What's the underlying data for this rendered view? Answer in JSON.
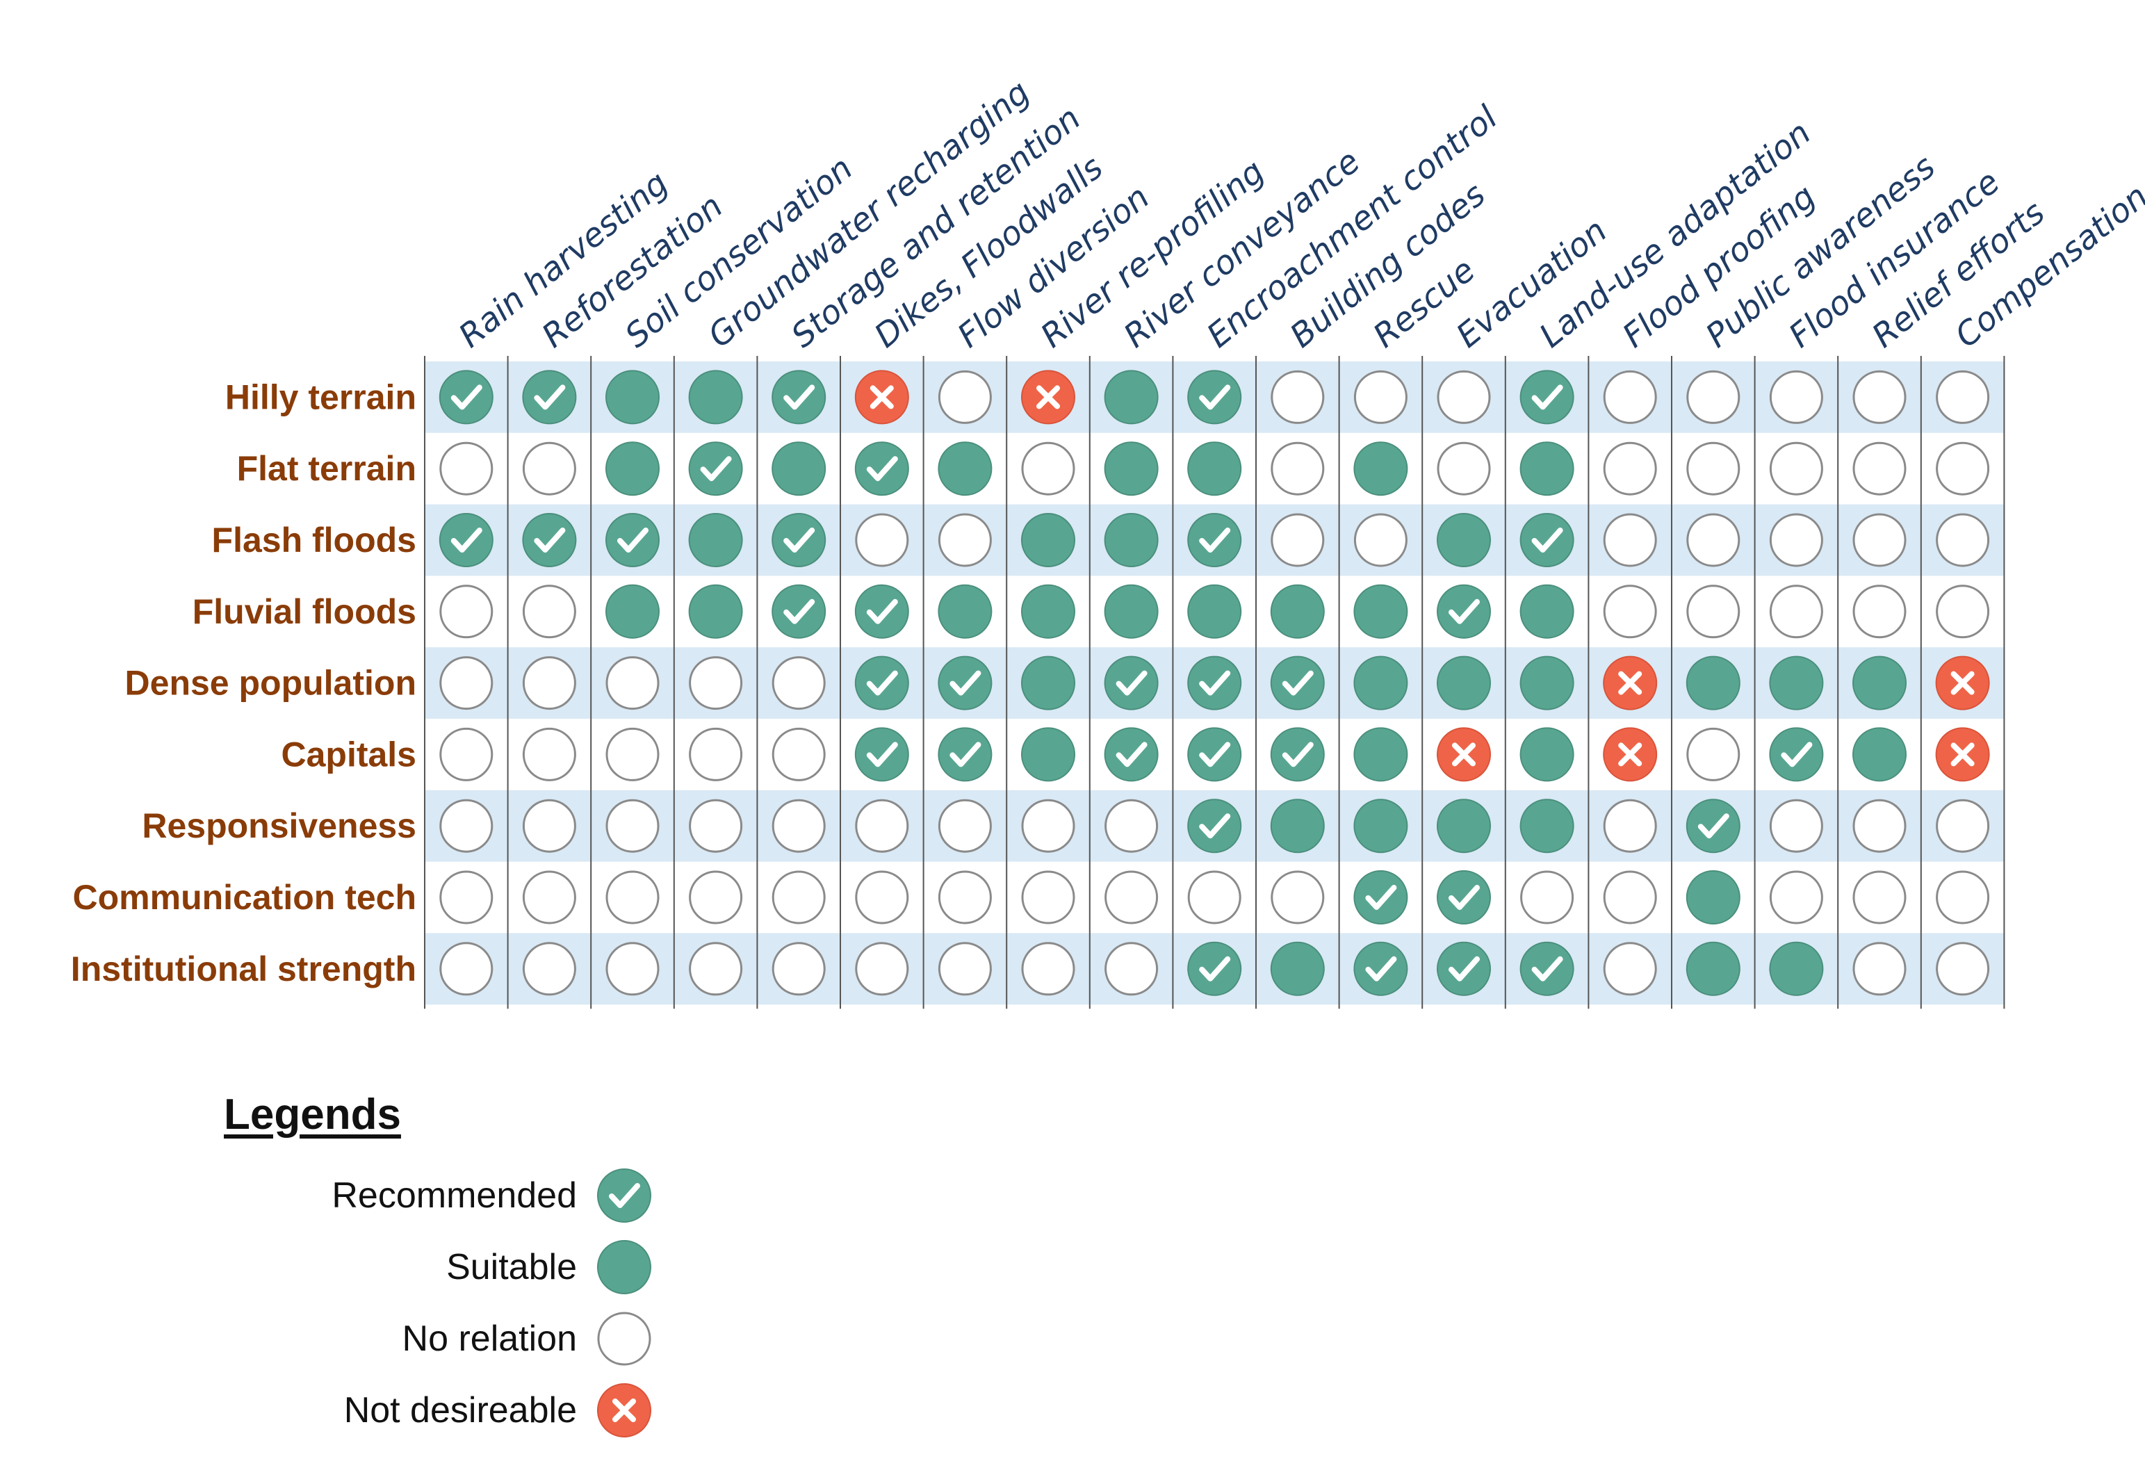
{
  "columns": [
    "Rain harvesting",
    "Reforestation",
    "Soil conservation",
    "Groundwater recharging",
    "Storage and retention",
    "Dikes, Floodwalls",
    "Flow diversion",
    "River re-profiling",
    "River conveyance",
    "Encroachment control",
    "Building codes",
    "Rescue",
    "Evacuation",
    "Land-use adaptation",
    "Flood proofing",
    "Public awareness",
    "Flood insurance",
    "Relief efforts",
    "Compensation"
  ],
  "rows": [
    {
      "label": "Hilly terrain",
      "cells": [
        "R",
        "R",
        "S",
        "S",
        "R",
        "X",
        "N",
        "X",
        "S",
        "R",
        "N",
        "N",
        "N",
        "R",
        "N",
        "N",
        "N",
        "N",
        "N"
      ]
    },
    {
      "label": "Flat terrain",
      "cells": [
        "N",
        "N",
        "S",
        "R",
        "S",
        "R",
        "S",
        "N",
        "S",
        "S",
        "N",
        "S",
        "N",
        "S",
        "N",
        "N",
        "N",
        "N",
        "N"
      ]
    },
    {
      "label": "Flash floods",
      "cells": [
        "R",
        "R",
        "R",
        "S",
        "R",
        "N",
        "N",
        "S",
        "S",
        "R",
        "N",
        "N",
        "S",
        "R",
        "N",
        "N",
        "N",
        "N",
        "N"
      ]
    },
    {
      "label": "Fluvial floods",
      "cells": [
        "N",
        "N",
        "S",
        "S",
        "R",
        "R",
        "S",
        "S",
        "S",
        "S",
        "S",
        "S",
        "R",
        "S",
        "N",
        "N",
        "N",
        "N",
        "N"
      ]
    },
    {
      "label": "Dense population",
      "cells": [
        "N",
        "N",
        "N",
        "N",
        "N",
        "R",
        "R",
        "S",
        "R",
        "R",
        "R",
        "S",
        "S",
        "S",
        "X",
        "S",
        "S",
        "S",
        "X"
      ]
    },
    {
      "label": "Capitals",
      "cells": [
        "N",
        "N",
        "N",
        "N",
        "N",
        "R",
        "R",
        "S",
        "R",
        "R",
        "R",
        "S",
        "X",
        "S",
        "X",
        "N",
        "R",
        "S",
        "X"
      ]
    },
    {
      "label": "Responsiveness",
      "cells": [
        "N",
        "N",
        "N",
        "N",
        "N",
        "N",
        "N",
        "N",
        "N",
        "R",
        "S",
        "S",
        "S",
        "S",
        "N",
        "R",
        "N",
        "N",
        "N"
      ]
    },
    {
      "label": "Communication tech",
      "cells": [
        "N",
        "N",
        "N",
        "N",
        "N",
        "N",
        "N",
        "N",
        "N",
        "N",
        "N",
        "R",
        "R",
        "N",
        "N",
        "S",
        "N",
        "N",
        "N"
      ]
    },
    {
      "label": "Institutional strength",
      "cells": [
        "N",
        "N",
        "N",
        "N",
        "N",
        "N",
        "N",
        "N",
        "N",
        "R",
        "S",
        "R",
        "R",
        "R",
        "N",
        "S",
        "S",
        "N",
        "N"
      ]
    }
  ],
  "legend": {
    "title": "Legends",
    "items": [
      {
        "key": "R",
        "label": "Recommended"
      },
      {
        "key": "S",
        "label": "Suitable"
      },
      {
        "key": "N",
        "label": "No relation"
      },
      {
        "key": "X",
        "label": "Not desireable"
      }
    ]
  },
  "colors": {
    "recommended": "#58a691",
    "suitable": "#58a691",
    "no_relation_fill": "#ffffff",
    "no_relation_stroke": "#8a8a8a",
    "not_desirable": "#ef6448",
    "row_band": "#d9e9f5",
    "row_label": "#8a3c08",
    "column_label": "#1f3b63"
  }
}
